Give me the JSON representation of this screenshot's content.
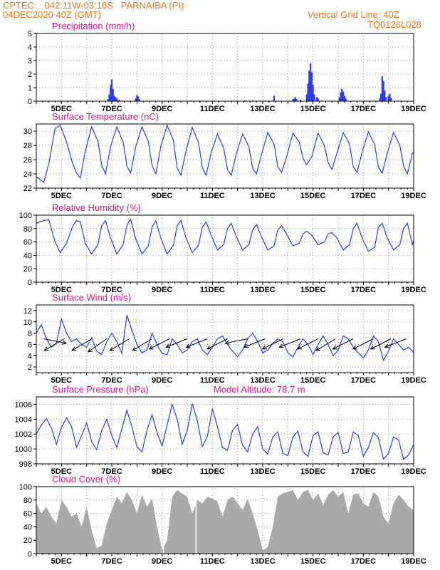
{
  "header": {
    "left_line1": "CPTEC:   042:11W-03:16S   PARNAIBA (PI)",
    "left_line2": "04DEC2020 40Z (GMT)",
    "right_line1": "Vertical Grid Line: 40Z",
    "right_line2": "TQ0126L028"
  },
  "colors": {
    "header": "#f07820",
    "panel_title": "#e8148c",
    "series": "#2b3fe8",
    "cloud": "#a9a9a9",
    "wind_arrow": "#000000",
    "grid": "#999999"
  },
  "chart_data": [
    {
      "type": "bar",
      "title": "Precipitation (mm/h)",
      "x_ticks": [
        "5DEC",
        "7DEC",
        "9DEC",
        "11DEC",
        "13DEC",
        "15DEC",
        "17DEC",
        "19DEC"
      ],
      "xlim_days": [
        4,
        19
      ],
      "ylim": [
        0,
        5
      ],
      "y_ticks": [
        0,
        1,
        2,
        3,
        4,
        5
      ],
      "grid": true,
      "x": [
        6.85,
        6.9,
        6.95,
        7.0,
        7.05,
        7.1,
        7.15,
        7.2,
        7.3,
        7.95,
        8.0,
        8.05,
        8.1,
        10.15,
        10.5,
        12.3,
        12.6,
        13.4,
        13.45,
        14.2,
        14.25,
        14.3,
        14.35,
        14.5,
        14.75,
        14.8,
        14.85,
        14.9,
        14.95,
        15.0,
        15.05,
        15.15,
        15.2,
        16.05,
        16.1,
        16.15,
        16.2,
        16.25,
        16.3,
        17.65,
        17.7,
        17.75,
        17.8,
        17.85,
        17.9,
        18.0,
        18.05,
        18.1
      ],
      "values": [
        0.15,
        0.5,
        1.2,
        1.6,
        0.9,
        0.4,
        0.3,
        0.2,
        0.1,
        0.2,
        0.45,
        0.35,
        0.15,
        0.05,
        0.05,
        0.05,
        0.05,
        0.05,
        0.4,
        0.15,
        0.2,
        0.3,
        0.15,
        0.1,
        0.5,
        1.3,
        2.25,
        2.8,
        2.15,
        1.2,
        0.5,
        0.3,
        0.2,
        0.3,
        0.65,
        0.9,
        0.7,
        0.4,
        0.2,
        0.2,
        0.55,
        1.85,
        1.5,
        0.8,
        0.3,
        0.4,
        0.55,
        0.25
      ]
    },
    {
      "type": "line",
      "title": "Surface Temperature (nC)",
      "x_ticks": [
        "5DEC",
        "7DEC",
        "9DEC",
        "11DEC",
        "13DEC",
        "15DEC",
        "17DEC",
        "19DEC"
      ],
      "xlim_days": [
        4,
        19
      ],
      "ylim": [
        22,
        31
      ],
      "y_ticks": [
        22,
        24,
        26,
        28,
        30
      ],
      "grid": true,
      "x": [
        4.0,
        4.3,
        4.5,
        4.75,
        4.95,
        5.2,
        5.45,
        5.6,
        5.75,
        5.95,
        6.2,
        6.45,
        6.6,
        6.75,
        6.95,
        7.2,
        7.45,
        7.6,
        7.75,
        7.95,
        8.2,
        8.45,
        8.6,
        8.75,
        8.95,
        9.2,
        9.45,
        9.6,
        9.75,
        9.95,
        10.2,
        10.45,
        10.6,
        10.75,
        10.95,
        11.2,
        11.45,
        11.6,
        11.75,
        11.95,
        12.2,
        12.45,
        12.6,
        12.75,
        12.95,
        13.2,
        13.45,
        13.6,
        13.75,
        13.95,
        14.2,
        14.45,
        14.6,
        14.75,
        14.95,
        15.2,
        15.45,
        15.6,
        15.75,
        15.95,
        16.2,
        16.45,
        16.6,
        16.75,
        16.95,
        17.2,
        17.45,
        17.6,
        17.75,
        17.95,
        18.2,
        18.45,
        18.6,
        18.75,
        18.95,
        19.0
      ],
      "values": [
        23.6,
        22.8,
        25.5,
        30.4,
        30.8,
        28.5,
        25.4,
        24.1,
        23.4,
        27.2,
        30.6,
        28.6,
        25.2,
        24.0,
        27.8,
        30.6,
        28.5,
        25.1,
        24.1,
        27.8,
        30.6,
        28.6,
        25.2,
        24.0,
        27.9,
        30.8,
        28.7,
        24.8,
        23.8,
        27.2,
        30.5,
        28.4,
        24.9,
        23.8,
        27.0,
        29.6,
        27.6,
        24.6,
        23.8,
        26.8,
        29.6,
        27.8,
        24.8,
        24.0,
        26.7,
        29.8,
        28.2,
        25.0,
        24.2,
        26.4,
        29.7,
        28.5,
        26.2,
        25.3,
        26.4,
        29.7,
        28.0,
        25.6,
        24.6,
        26.9,
        29.8,
        28.2,
        25.0,
        24.2,
        27.0,
        29.9,
        28.1,
        24.9,
        24.1,
        26.9,
        29.8,
        28.0,
        25.1,
        24.0,
        26.9,
        27.0
      ]
    },
    {
      "type": "line",
      "title": "Relative Humidity (%)",
      "x_ticks": [
        "5DEC",
        "7DEC",
        "9DEC",
        "11DEC",
        "13DEC",
        "15DEC",
        "17DEC",
        "19DEC"
      ],
      "xlim_days": [
        4,
        19
      ],
      "ylim": [
        0,
        100
      ],
      "y_ticks": [
        0,
        20,
        40,
        60,
        80,
        100
      ],
      "grid": true,
      "x": [
        4.0,
        4.3,
        4.5,
        4.75,
        4.95,
        5.2,
        5.45,
        5.6,
        5.75,
        5.95,
        6.2,
        6.45,
        6.6,
        6.75,
        6.95,
        7.2,
        7.45,
        7.6,
        7.75,
        7.95,
        8.2,
        8.45,
        8.6,
        8.75,
        8.95,
        9.2,
        9.45,
        9.6,
        9.75,
        9.95,
        10.2,
        10.45,
        10.6,
        10.75,
        10.95,
        11.2,
        11.45,
        11.6,
        11.75,
        11.95,
        12.2,
        12.45,
        12.6,
        12.75,
        12.95,
        13.2,
        13.45,
        13.6,
        13.75,
        13.95,
        14.2,
        14.45,
        14.6,
        14.75,
        14.95,
        15.2,
        15.45,
        15.6,
        15.75,
        15.95,
        16.2,
        16.45,
        16.6,
        16.75,
        16.95,
        17.2,
        17.45,
        17.6,
        17.75,
        17.95,
        18.2,
        18.45,
        18.6,
        18.75,
        18.95,
        19.0
      ],
      "values": [
        88,
        92,
        93,
        60,
        44,
        58,
        84,
        92,
        90,
        58,
        42,
        56,
        84,
        92,
        66,
        42,
        56,
        85,
        94,
        65,
        42,
        54,
        82,
        92,
        66,
        42,
        55,
        84,
        92,
        66,
        44,
        55,
        82,
        90,
        70,
        48,
        56,
        80,
        88,
        68,
        48,
        56,
        78,
        86,
        68,
        48,
        54,
        78,
        84,
        72,
        54,
        58,
        72,
        76,
        70,
        56,
        60,
        72,
        74,
        66,
        48,
        56,
        80,
        88,
        66,
        46,
        52,
        82,
        88,
        66,
        48,
        56,
        80,
        88,
        56,
        62
      ]
    },
    {
      "type": "line",
      "title": "Surface Wind (m/s)",
      "x_ticks": [
        "5DEC",
        "7DEC",
        "9DEC",
        "11DEC",
        "13DEC",
        "15DEC",
        "17DEC",
        "19DEC"
      ],
      "xlim_days": [
        4,
        19
      ],
      "ylim": [
        1,
        13
      ],
      "y_ticks": [
        2,
        4,
        6,
        8,
        10,
        12
      ],
      "grid": true,
      "x": [
        4.0,
        4.2,
        4.4,
        4.6,
        4.8,
        5.0,
        5.2,
        5.4,
        5.6,
        5.8,
        6.0,
        6.2,
        6.4,
        6.6,
        6.8,
        7.0,
        7.2,
        7.4,
        7.6,
        7.8,
        8.0,
        8.2,
        8.4,
        8.6,
        8.8,
        9.0,
        9.2,
        9.4,
        9.6,
        9.8,
        10.0,
        10.2,
        10.4,
        10.6,
        10.8,
        11.0,
        11.2,
        11.4,
        11.6,
        11.8,
        12.0,
        12.2,
        12.4,
        12.6,
        12.8,
        13.0,
        13.2,
        13.4,
        13.6,
        13.8,
        14.0,
        14.2,
        14.4,
        14.6,
        14.8,
        15.0,
        15.2,
        15.4,
        15.6,
        15.8,
        16.0,
        16.2,
        16.4,
        16.6,
        16.8,
        17.0,
        17.2,
        17.4,
        17.6,
        17.8,
        18.0,
        18.2,
        18.4,
        18.6,
        18.8,
        19.0
      ],
      "values": [
        8,
        9.5,
        7,
        5.5,
        6.2,
        10.5,
        8,
        6.5,
        7,
        6,
        5.5,
        7.2,
        4.8,
        4.2,
        6.5,
        8,
        6.5,
        4.4,
        11.2,
        8.5,
        6,
        4.5,
        5,
        8,
        6,
        4.4,
        4.2,
        7,
        6,
        4.5,
        5,
        6.5,
        7,
        5,
        4.2,
        5.5,
        7,
        7.5,
        6,
        4.8,
        3.8,
        5,
        7,
        8,
        6.5,
        4.5,
        5,
        6.2,
        7,
        6.5,
        4.5,
        3.8,
        5.5,
        7,
        6,
        4.2,
        6,
        7.5,
        6,
        4,
        5,
        7.5,
        7,
        5.5,
        4.5,
        3.6,
        5,
        7.5,
        6.5,
        3.2,
        4.8,
        7,
        6,
        5,
        5.5,
        4.6
      ],
      "arrows": [
        {
          "day": 4.3,
          "u": 1,
          "v": -0.2
        },
        {
          "day": 5.1,
          "u": -1,
          "v": -0.6
        },
        {
          "day": 6.2,
          "u": -1,
          "v": -0.6
        },
        {
          "day": 6.8,
          "u": -1,
          "v": -0.7
        },
        {
          "day": 7.7,
          "u": -1,
          "v": -0.6
        },
        {
          "day": 8.6,
          "u": -1,
          "v": -0.6
        },
        {
          "day": 9.3,
          "u": -1,
          "v": -0.5
        },
        {
          "day": 10.0,
          "u": -1,
          "v": -0.4
        },
        {
          "day": 10.8,
          "u": -1,
          "v": -0.4
        },
        {
          "day": 11.6,
          "u": -1,
          "v": -0.5
        },
        {
          "day": 12.4,
          "u": -1,
          "v": -0.2
        },
        {
          "day": 13.1,
          "u": -1,
          "v": -0.4
        },
        {
          "day": 13.8,
          "u": -1,
          "v": -0.5
        },
        {
          "day": 14.5,
          "u": -1,
          "v": -0.4
        },
        {
          "day": 15.2,
          "u": -1,
          "v": -0.5
        },
        {
          "day": 15.9,
          "u": -1,
          "v": -0.6
        },
        {
          "day": 16.6,
          "u": -1,
          "v": -0.5
        },
        {
          "day": 17.4,
          "u": -1,
          "v": -0.5
        },
        {
          "day": 18.1,
          "u": -1,
          "v": -0.5
        },
        {
          "day": 18.7,
          "u": -1,
          "v": -0.4
        }
      ]
    },
    {
      "type": "line",
      "title": "Surface Pressure (hPa)",
      "annotation": "Model Altitude: 78.7 m",
      "x_ticks": [
        "5DEC",
        "7DEC",
        "9DEC",
        "11DEC",
        "13DEC",
        "15DEC",
        "17DEC",
        "19DEC"
      ],
      "xlim_days": [
        4,
        19
      ],
      "ylim": [
        998,
        1007
      ],
      "y_ticks": [
        998,
        1000,
        1002,
        1004,
        1006
      ],
      "grid": true,
      "x": [
        4.0,
        4.2,
        4.4,
        4.6,
        4.8,
        5.0,
        5.2,
        5.4,
        5.6,
        5.8,
        6.0,
        6.2,
        6.4,
        6.6,
        6.8,
        7.0,
        7.2,
        7.4,
        7.6,
        7.8,
        8.0,
        8.2,
        8.4,
        8.6,
        8.8,
        9.0,
        9.2,
        9.4,
        9.6,
        9.8,
        10.0,
        10.2,
        10.4,
        10.6,
        10.8,
        11.0,
        11.2,
        11.4,
        11.6,
        11.8,
        12.0,
        12.2,
        12.4,
        12.6,
        12.8,
        13.0,
        13.2,
        13.4,
        13.6,
        13.8,
        14.0,
        14.2,
        14.4,
        14.6,
        14.8,
        15.0,
        15.2,
        15.4,
        15.6,
        15.8,
        16.0,
        16.2,
        16.4,
        16.6,
        16.8,
        17.0,
        17.2,
        17.4,
        17.6,
        17.8,
        18.0,
        18.2,
        18.4,
        18.6,
        18.8,
        19.0
      ],
      "values": [
        1002,
        1003.2,
        1004.1,
        1002.8,
        1000.6,
        1002.9,
        1004.2,
        1003.0,
        1000.2,
        1001.8,
        1003.5,
        1001.0,
        999.9,
        1002.5,
        1004.0,
        1001.8,
        1000.2,
        1002.7,
        1005.2,
        1003.0,
        1000.3,
        999.6,
        1002.5,
        1004.6,
        1002.2,
        1000.4,
        1003.2,
        1006.0,
        1004.0,
        1000.6,
        1002.5,
        1006.1,
        1003.8,
        1000.3,
        1001.7,
        1005.4,
        1003.0,
        1000.2,
        999.8,
        1002.5,
        1003.3,
        1000.5,
        999.6,
        1002.0,
        1003.0,
        1000.0,
        999.3,
        1001.6,
        1002.3,
        999.4,
        999.1,
        1001.6,
        1002.4,
        999.6,
        999.0,
        1001.8,
        1002.3,
        999.5,
        999.2,
        1001.6,
        1002.2,
        999.4,
        999.6,
        1002.3,
        1001.8,
        999.0,
        1000.2,
        1002.2,
        1001.5,
        998.6,
        999.4,
        1001.6,
        1001.2,
        998.6,
        999.2,
        1000.6
      ]
    },
    {
      "type": "area",
      "title": "Cloud Cover (%)",
      "x_ticks": [
        "5DEC",
        "7DEC",
        "9DEC",
        "11DEC",
        "13DEC",
        "15DEC",
        "17DEC",
        "19DEC"
      ],
      "xlim_days": [
        4,
        19
      ],
      "ylim": [
        0,
        100
      ],
      "y_ticks": [
        0,
        20,
        40,
        60,
        80,
        100
      ],
      "grid": true,
      "x": [
        4.0,
        4.2,
        4.4,
        4.6,
        4.8,
        5.0,
        5.2,
        5.4,
        5.6,
        5.8,
        6.0,
        6.2,
        6.4,
        6.6,
        6.8,
        7.0,
        7.2,
        7.4,
        7.6,
        7.8,
        8.0,
        8.2,
        8.4,
        8.6,
        8.8,
        9.0,
        9.2,
        9.4,
        9.6,
        9.8,
        10.0,
        10.2,
        10.4,
        10.6,
        10.8,
        11.0,
        11.2,
        11.4,
        11.6,
        11.8,
        12.0,
        12.2,
        12.4,
        12.6,
        12.8,
        13.0,
        13.2,
        13.4,
        13.6,
        13.8,
        14.0,
        14.2,
        14.4,
        14.6,
        14.8,
        15.0,
        15.2,
        15.4,
        15.6,
        15.8,
        16.0,
        16.2,
        16.4,
        16.6,
        16.8,
        17.0,
        17.2,
        17.4,
        17.6,
        17.8,
        18.0,
        18.2,
        18.4,
        18.6,
        18.8,
        19.0
      ],
      "values": [
        75,
        60,
        70,
        55,
        45,
        80,
        70,
        55,
        60,
        40,
        70,
        35,
        8,
        12,
        45,
        65,
        85,
        75,
        92,
        80,
        60,
        88,
        70,
        82,
        40,
        5,
        20,
        85,
        95,
        90,
        85,
        60,
        80,
        75,
        85,
        82,
        78,
        55,
        80,
        85,
        75,
        65,
        82,
        60,
        35,
        5,
        10,
        40,
        85,
        90,
        92,
        95,
        80,
        92,
        95,
        80,
        90,
        72,
        88,
        95,
        85,
        92,
        60,
        88,
        90,
        75,
        70,
        92,
        85,
        55,
        45,
        75,
        88,
        80,
        70,
        65
      ]
    }
  ]
}
